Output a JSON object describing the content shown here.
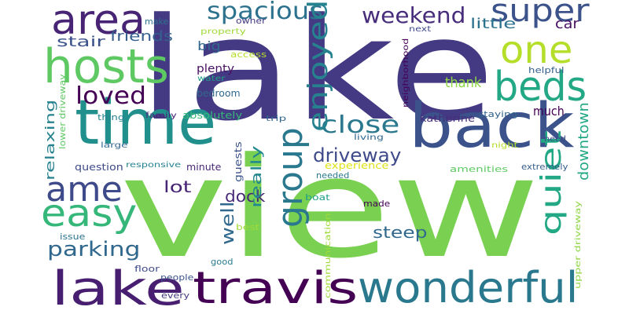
{
  "background": "#ffffff",
  "words": [
    {
      "text": "lake",
      "color": "#443a83"
    },
    {
      "text": "view",
      "color": "#7ad151"
    },
    {
      "text": "time",
      "color": "#21908d"
    },
    {
      "text": "back",
      "color": "#3b528b"
    },
    {
      "text": "hosts",
      "color": "#5ec962"
    },
    {
      "text": "area",
      "color": "#482475"
    },
    {
      "text": "beds",
      "color": "#22a884"
    },
    {
      "text": "travis",
      "color": "#440154"
    },
    {
      "text": "wonderful",
      "color": "#2a788e"
    },
    {
      "text": "lake",
      "color": "#481f70"
    },
    {
      "text": "easy",
      "color": "#35b779"
    },
    {
      "text": "ame",
      "color": "#3e4a89"
    },
    {
      "text": "one",
      "color": "#b5de2b"
    },
    {
      "text": "super",
      "color": "#3b528b"
    },
    {
      "text": "group",
      "color": "#2a788e"
    },
    {
      "text": "spacious",
      "color": "#2c728e"
    },
    {
      "text": "weekend",
      "color": "#472d7b"
    },
    {
      "text": "loved",
      "color": "#440154"
    },
    {
      "text": "close",
      "color": "#2a788e"
    },
    {
      "text": "quiet",
      "color": "#22a884"
    },
    {
      "text": "enjoyed",
      "color": "#26828e"
    },
    {
      "text": "driveway",
      "color": "#3e4a89"
    },
    {
      "text": "parking",
      "color": "#31688e"
    },
    {
      "text": "steep",
      "color": "#31688e"
    },
    {
      "text": "dock",
      "color": "#482878"
    },
    {
      "text": "lot",
      "color": "#482475"
    },
    {
      "text": "well",
      "color": "#31688e"
    },
    {
      "text": "really",
      "color": "#23888e"
    },
    {
      "text": "car",
      "color": "#471164"
    },
    {
      "text": "little",
      "color": "#2c728e"
    },
    {
      "text": "stair",
      "color": "#3b528b"
    },
    {
      "text": "friends",
      "color": "#355f8d"
    },
    {
      "text": "thank",
      "color": "#8fd744"
    },
    {
      "text": "downtown",
      "color": "#22a884"
    },
    {
      "text": "much",
      "color": "#440154"
    },
    {
      "text": "relaxing",
      "color": "#26828e"
    },
    {
      "text": "big",
      "color": "#31688e"
    },
    {
      "text": "plenty",
      "color": "#471164"
    },
    {
      "text": "bedroom",
      "color": "#31688e"
    },
    {
      "text": "absolutely",
      "color": "#35b779"
    },
    {
      "text": "katherine",
      "color": "#472d7b"
    },
    {
      "text": "lower driveway",
      "color": "#5ec962"
    },
    {
      "text": "question",
      "color": "#3e4a89"
    },
    {
      "text": "minute",
      "color": "#482878"
    },
    {
      "text": "guests",
      "color": "#3b528b"
    },
    {
      "text": "amenities",
      "color": "#5ec962"
    },
    {
      "text": "experience",
      "color": "#dde318"
    },
    {
      "text": "needed",
      "color": "#2a788e"
    },
    {
      "text": "boat",
      "color": "#1fa188"
    },
    {
      "text": "made",
      "color": "#440154"
    },
    {
      "text": "best",
      "color": "#a0da39"
    },
    {
      "text": "issue",
      "color": "#2c728e"
    },
    {
      "text": "good",
      "color": "#287c8e"
    },
    {
      "text": "floor",
      "color": "#3e4a89"
    },
    {
      "text": "people",
      "color": "#3b528b"
    },
    {
      "text": "every",
      "color": "#443a83"
    },
    {
      "text": "communication",
      "color": "#a0da39"
    },
    {
      "text": "upper driveway",
      "color": "#8fd744"
    },
    {
      "text": "make",
      "color": "#2c728e"
    },
    {
      "text": "owner",
      "color": "#443a83"
    },
    {
      "text": "property",
      "color": "#a0da39"
    },
    {
      "text": "access",
      "color": "#b5de2b"
    },
    {
      "text": "water",
      "color": "#1fa188"
    },
    {
      "text": "next",
      "color": "#3e4a89"
    },
    {
      "text": "neighborhood",
      "color": "#440154"
    },
    {
      "text": "helpful",
      "color": "#355f8d"
    },
    {
      "text": "staying",
      "color": "#33638d"
    },
    {
      "text": "need",
      "color": "#3e4a89"
    },
    {
      "text": "night",
      "color": "#b5de2b"
    },
    {
      "text": "extremely",
      "color": "#355f8d"
    },
    {
      "text": "living",
      "color": "#31688e"
    },
    {
      "text": "trip",
      "color": "#31688e"
    },
    {
      "text": "family",
      "color": "#482878"
    },
    {
      "text": "thing",
      "color": "#26828e"
    },
    {
      "text": "large",
      "color": "#31688e"
    },
    {
      "text": "responsive",
      "color": "#26828e"
    }
  ]
}
